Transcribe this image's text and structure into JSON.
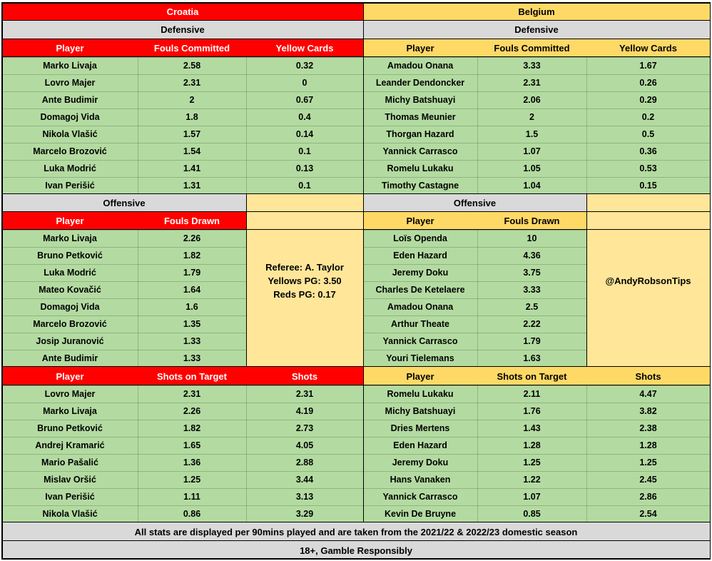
{
  "colors": {
    "croatia": "#ff0000",
    "belgium": "#ffd966",
    "stat_bg": "#b3dba1",
    "section_bg": "#d9d9d9",
    "box_bg": "#ffe699"
  },
  "teams": {
    "home": "Croatia",
    "away": "Belgium"
  },
  "sections": {
    "defensive": "Defensive",
    "offensive": "Offensive"
  },
  "columns": {
    "player": "Player",
    "fouls_committed": "Fouls Committed",
    "yellow_cards": "Yellow Cards",
    "fouls_drawn": "Fouls Drawn",
    "shots_on_target": "Shots on Target",
    "shots": "Shots"
  },
  "croatia": {
    "defensive": [
      [
        "Marko Livaja",
        "2.58",
        "0.32"
      ],
      [
        "Lovro Majer",
        "2.31",
        "0"
      ],
      [
        "Ante Budimir",
        "2",
        "0.67"
      ],
      [
        "Domagoj Vida",
        "1.8",
        "0.4"
      ],
      [
        "Nikola Vlašić",
        "1.57",
        "0.14"
      ],
      [
        "Marcelo Brozović",
        "1.54",
        "0.1"
      ],
      [
        "Luka Modrić",
        "1.41",
        "0.13"
      ],
      [
        "Ivan Perišić",
        "1.31",
        "0.1"
      ]
    ],
    "offensive": [
      [
        "Marko Livaja",
        "2.26"
      ],
      [
        "Bruno Petković",
        "1.82"
      ],
      [
        "Luka Modrić",
        "1.79"
      ],
      [
        "Mateo Kovačić",
        "1.64"
      ],
      [
        "Domagoj Vida",
        "1.6"
      ],
      [
        "Marcelo Brozović",
        "1.35"
      ],
      [
        "Josip Juranović",
        "1.33"
      ],
      [
        "Ante Budimir",
        "1.33"
      ]
    ],
    "shots": [
      [
        "Lovro Majer",
        "2.31",
        "2.31"
      ],
      [
        "Marko Livaja",
        "2.26",
        "4.19"
      ],
      [
        "Bruno Petković",
        "1.82",
        "2.73"
      ],
      [
        "Andrej Kramarić",
        "1.65",
        "4.05"
      ],
      [
        "Mario Pašalić",
        "1.36",
        "2.88"
      ],
      [
        "Mislav Oršić",
        "1.25",
        "3.44"
      ],
      [
        "Ivan Perišić",
        "1.11",
        "3.13"
      ],
      [
        "Nikola Vlašić",
        "0.86",
        "3.29"
      ]
    ]
  },
  "belgium": {
    "defensive": [
      [
        "Amadou Onana",
        "3.33",
        "1.67"
      ],
      [
        "Leander Dendoncker",
        "2.31",
        "0.26"
      ],
      [
        "Michy Batshuayi",
        "2.06",
        "0.29"
      ],
      [
        "Thomas Meunier",
        "2",
        "0.2"
      ],
      [
        "Thorgan Hazard",
        "1.5",
        "0.5"
      ],
      [
        "Yannick Carrasco",
        "1.07",
        "0.36"
      ],
      [
        "Romelu Lukaku",
        "1.05",
        "0.53"
      ],
      [
        "Timothy Castagne",
        "1.04",
        "0.15"
      ]
    ],
    "offensive": [
      [
        "Loïs Openda",
        "10"
      ],
      [
        "Eden Hazard",
        "4.36"
      ],
      [
        "Jeremy Doku",
        "3.75"
      ],
      [
        "Charles De Ketelaere",
        "3.33"
      ],
      [
        "Amadou Onana",
        "2.5"
      ],
      [
        "Arthur Theate",
        "2.22"
      ],
      [
        "Yannick Carrasco",
        "1.79"
      ],
      [
        "Youri Tielemans",
        "1.63"
      ]
    ],
    "shots": [
      [
        "Romelu Lukaku",
        "2.11",
        "4.47"
      ],
      [
        "Michy Batshuayi",
        "1.76",
        "3.82"
      ],
      [
        "Dries Mertens",
        "1.43",
        "2.38"
      ],
      [
        "Eden Hazard",
        "1.28",
        "1.28"
      ],
      [
        "Jeremy Doku",
        "1.25",
        "1.25"
      ],
      [
        "Hans Vanaken",
        "1.22",
        "2.45"
      ],
      [
        "Yannick Carrasco",
        "1.07",
        "2.86"
      ],
      [
        "Kevin De Bruyne",
        "0.85",
        "2.54"
      ]
    ]
  },
  "referee": {
    "name": "Referee: A. Taylor",
    "yellows": "Yellows PG: 3.50",
    "reds": "Reds PG: 0.17"
  },
  "handle": "@AndyRobsonTips",
  "footer": {
    "note": "All stats are displayed per 90mins played and are taken from the 2021/22 & 2022/23 domestic season",
    "disclaimer": "18+, Gamble Responsibly"
  }
}
